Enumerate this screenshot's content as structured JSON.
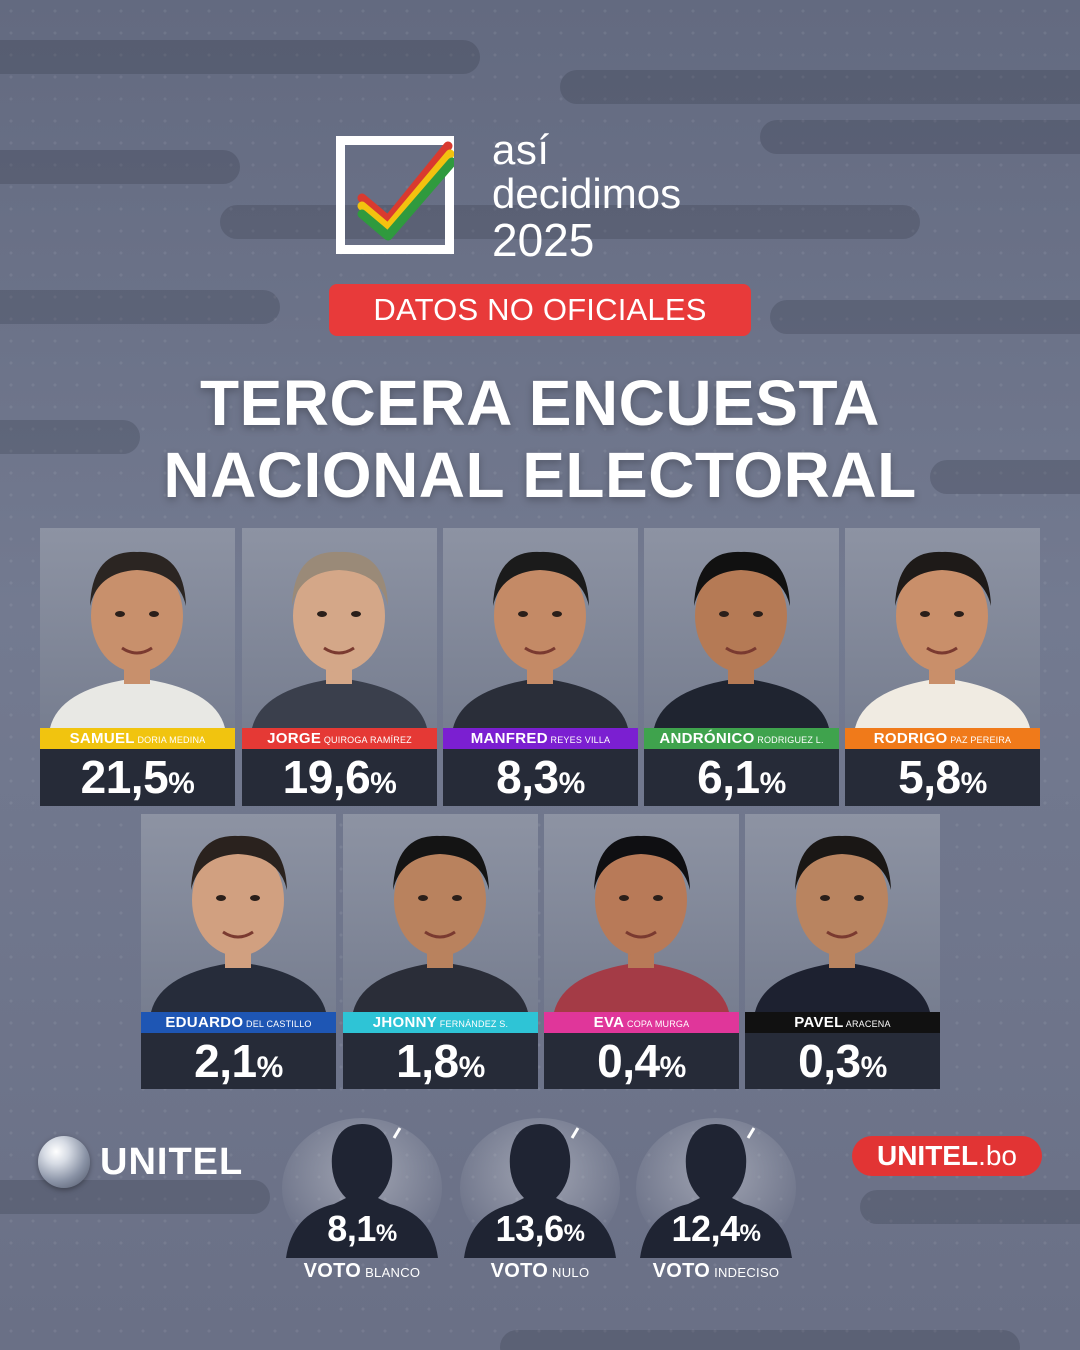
{
  "header": {
    "logo_line1": "así",
    "logo_line2": "decidimos",
    "logo_line3": "2025",
    "badge": "DATOS NO OFICIALES",
    "title_line1": "TERCERA ENCUESTA",
    "title_line2": "NACIONAL ELECTORAL"
  },
  "candidates": [
    {
      "first": "SAMUEL",
      "last": "DORIA MEDINA",
      "pct": "21,5",
      "color": "#f1c40f"
    },
    {
      "first": "JORGE",
      "last": "QUIROGA RAMÍREZ",
      "pct": "19,6",
      "color": "#e53935"
    },
    {
      "first": "MANFRED",
      "last": "REYES VILLA",
      "pct": "8,3",
      "color": "#7b1fd1"
    },
    {
      "first": "ANDRÓNICO",
      "last": "RODRIGUEZ L.",
      "pct": "6,1",
      "color": "#3fa34d"
    },
    {
      "first": "RODRIGO",
      "last": "PAZ PEREIRA",
      "pct": "5,8",
      "color": "#f07a1a"
    },
    {
      "first": "EDUARDO",
      "last": "DEL CASTILLO",
      "pct": "2,1",
      "color": "#1e56b4"
    },
    {
      "first": "JHONNY",
      "last": "FERNÁNDEZ S.",
      "pct": "1,8",
      "color": "#2ec4d6"
    },
    {
      "first": "EVA",
      "last": "COPA MURGA",
      "pct": "0,4",
      "color": "#e0369a"
    },
    {
      "first": "PAVEL",
      "last": "ARACENA",
      "pct": "0,3",
      "color": "#111111"
    }
  ],
  "pct_symbol": "%",
  "votes": [
    {
      "pct": "8,1",
      "label": "VOTO",
      "sub": "BLANCO"
    },
    {
      "pct": "13,6",
      "label": "VOTO",
      "sub": "NULO"
    },
    {
      "pct": "12,4",
      "label": "VOTO",
      "sub": "INDECISO"
    }
  ],
  "brand": {
    "left": "UNITEL",
    "right_bold": "UNITEL",
    "right_suffix": ".bo"
  }
}
